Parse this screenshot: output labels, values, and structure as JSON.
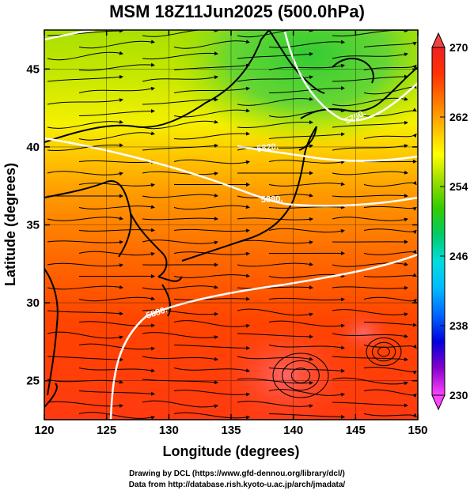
{
  "title": "MSM 18Z11Jun2025 (500.0hPa)",
  "map": {
    "lon_range": [
      120,
      150
    ],
    "lat_range": [
      22.5,
      47.5
    ],
    "xlabel": "Longitude (degrees)",
    "ylabel": "Latitude  (degrees)",
    "x_ticks": [
      "120",
      "125",
      "130",
      "135",
      "140",
      "145",
      "150"
    ],
    "y_ticks": [
      "25",
      "30",
      "35",
      "40",
      "45"
    ],
    "temperature_colorbar": {
      "min": 230,
      "max": 270,
      "tick_labels": [
        "270",
        "262",
        "254",
        "246",
        "238",
        "230"
      ],
      "colors": [
        "#ff44ff",
        "#8800cc",
        "#0000dd",
        "#0066ff",
        "#00bbff",
        "#00dddd",
        "#00cc66",
        "#33cc00",
        "#99dd00",
        "#ffff00",
        "#ffbb00",
        "#ff7700",
        "#ff3300",
        "#ee2222"
      ]
    },
    "contour_labels": [
      "5880.",
      "5760.",
      "5820.",
      "5880."
    ],
    "streamlines": "black-arrows"
  },
  "credits": {
    "line1": "Drawing by DCL (https://www.gfd-dennou.org/library/dcl/)",
    "line2": "Data from http://database.rish.kyoto-u.ac.jp/arch/jmadata/"
  }
}
